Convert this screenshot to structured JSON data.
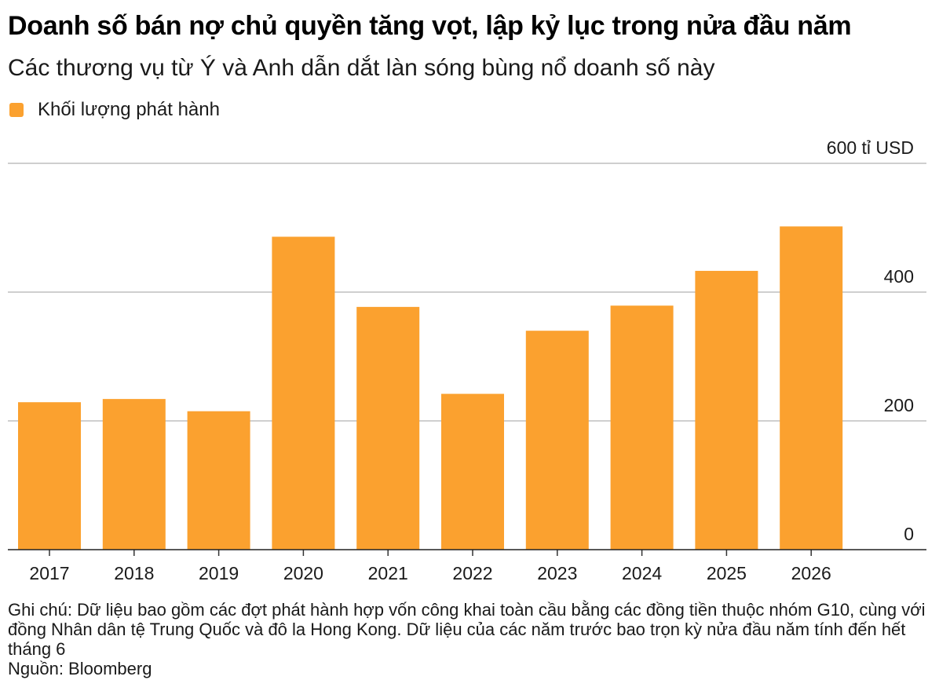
{
  "title": "Doanh số bán nợ chủ quyền tăng vọt, lập kỷ lục trong nửa đầu năm",
  "subtitle": "Các thương vụ từ Ý và Anh dẫn dắt làn sóng bùng nổ doanh số này",
  "note": "Ghi chú: Dữ liệu bao gồm các đợt phát hành hợp vốn công khai toàn cầu bằng các đồng tiền thuộc nhóm G10, cùng với đồng Nhân dân tệ Trung Quốc và đô la Hong Kong. Dữ liệu của các năm trước bao trọn kỳ nửa đầu năm tính đến hết tháng 6",
  "source": "Nguồn: Bloomberg",
  "chart_data": {
    "type": "bar",
    "categories": [
      "2017",
      "2018",
      "2019",
      "2020",
      "2021",
      "2022",
      "2023",
      "2024",
      "2025",
      "2026"
    ],
    "series": [
      {
        "name": "Khối lượng phát hành",
        "values": [
          229,
          234,
          215,
          486,
          377,
          242,
          340,
          379,
          433,
          502
        ],
        "color": "#fba12f"
      }
    ],
    "ylim": [
      0,
      600
    ],
    "yticks": [
      0,
      200,
      400,
      600
    ],
    "ytick_labels": [
      "0",
      "200",
      "400",
      "600 tỉ USD"
    ],
    "grid": true,
    "legend_position": "top-left",
    "axis_position": "right"
  }
}
